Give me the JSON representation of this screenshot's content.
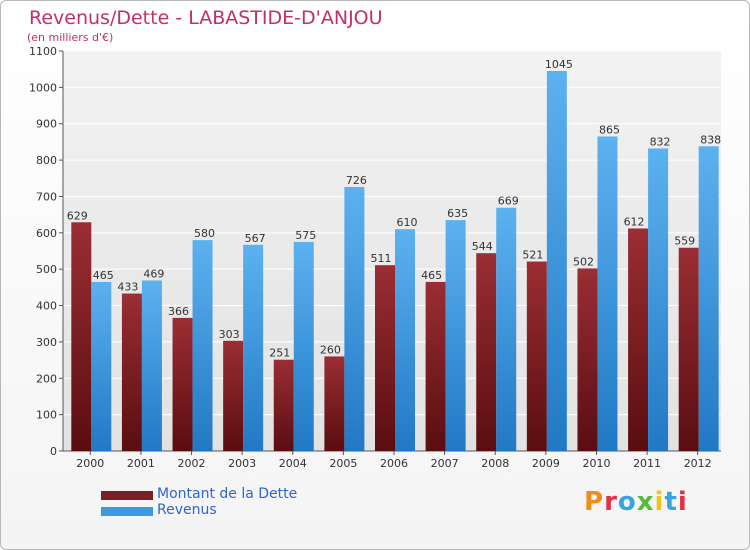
{
  "header": {
    "title": "Revenus/Dette - LABASTIDE-D'ANJOU",
    "subtitle": "(en milliers d'€)"
  },
  "legend": [
    {
      "label": "Montant de la Dette",
      "color": "#7a1f24"
    },
    {
      "label": "Revenus",
      "color": "#3b9ae1"
    }
  ],
  "logo": {
    "text": "Proxiti"
  },
  "colors": {
    "title": "#c0306a",
    "dette": "#7a1f24",
    "revenus": "#3b9ae1",
    "legend_text": "#2f66c9"
  },
  "chart_data": {
    "type": "bar",
    "title": "Revenus/Dette - LABASTIDE-D'ANJOU",
    "subtitle": "(en milliers d'€)",
    "xlabel": "",
    "ylabel": "",
    "ylim": [
      0,
      1100
    ],
    "yticks": [
      0,
      100,
      200,
      300,
      400,
      500,
      600,
      700,
      800,
      900,
      1000,
      1100
    ],
    "grid": true,
    "legend_position": "bottom-left",
    "categories": [
      "2000",
      "2001",
      "2002",
      "2003",
      "2004",
      "2005",
      "2006",
      "2007",
      "2008",
      "2009",
      "2010",
      "2011",
      "2012"
    ],
    "series": [
      {
        "name": "Montant de la Dette",
        "values": [
          629,
          433,
          366,
          303,
          251,
          260,
          511,
          465,
          544,
          521,
          502,
          612,
          559
        ]
      },
      {
        "name": "Revenus",
        "values": [
          465,
          469,
          580,
          567,
          575,
          726,
          610,
          635,
          669,
          1045,
          865,
          832,
          838
        ]
      }
    ]
  }
}
